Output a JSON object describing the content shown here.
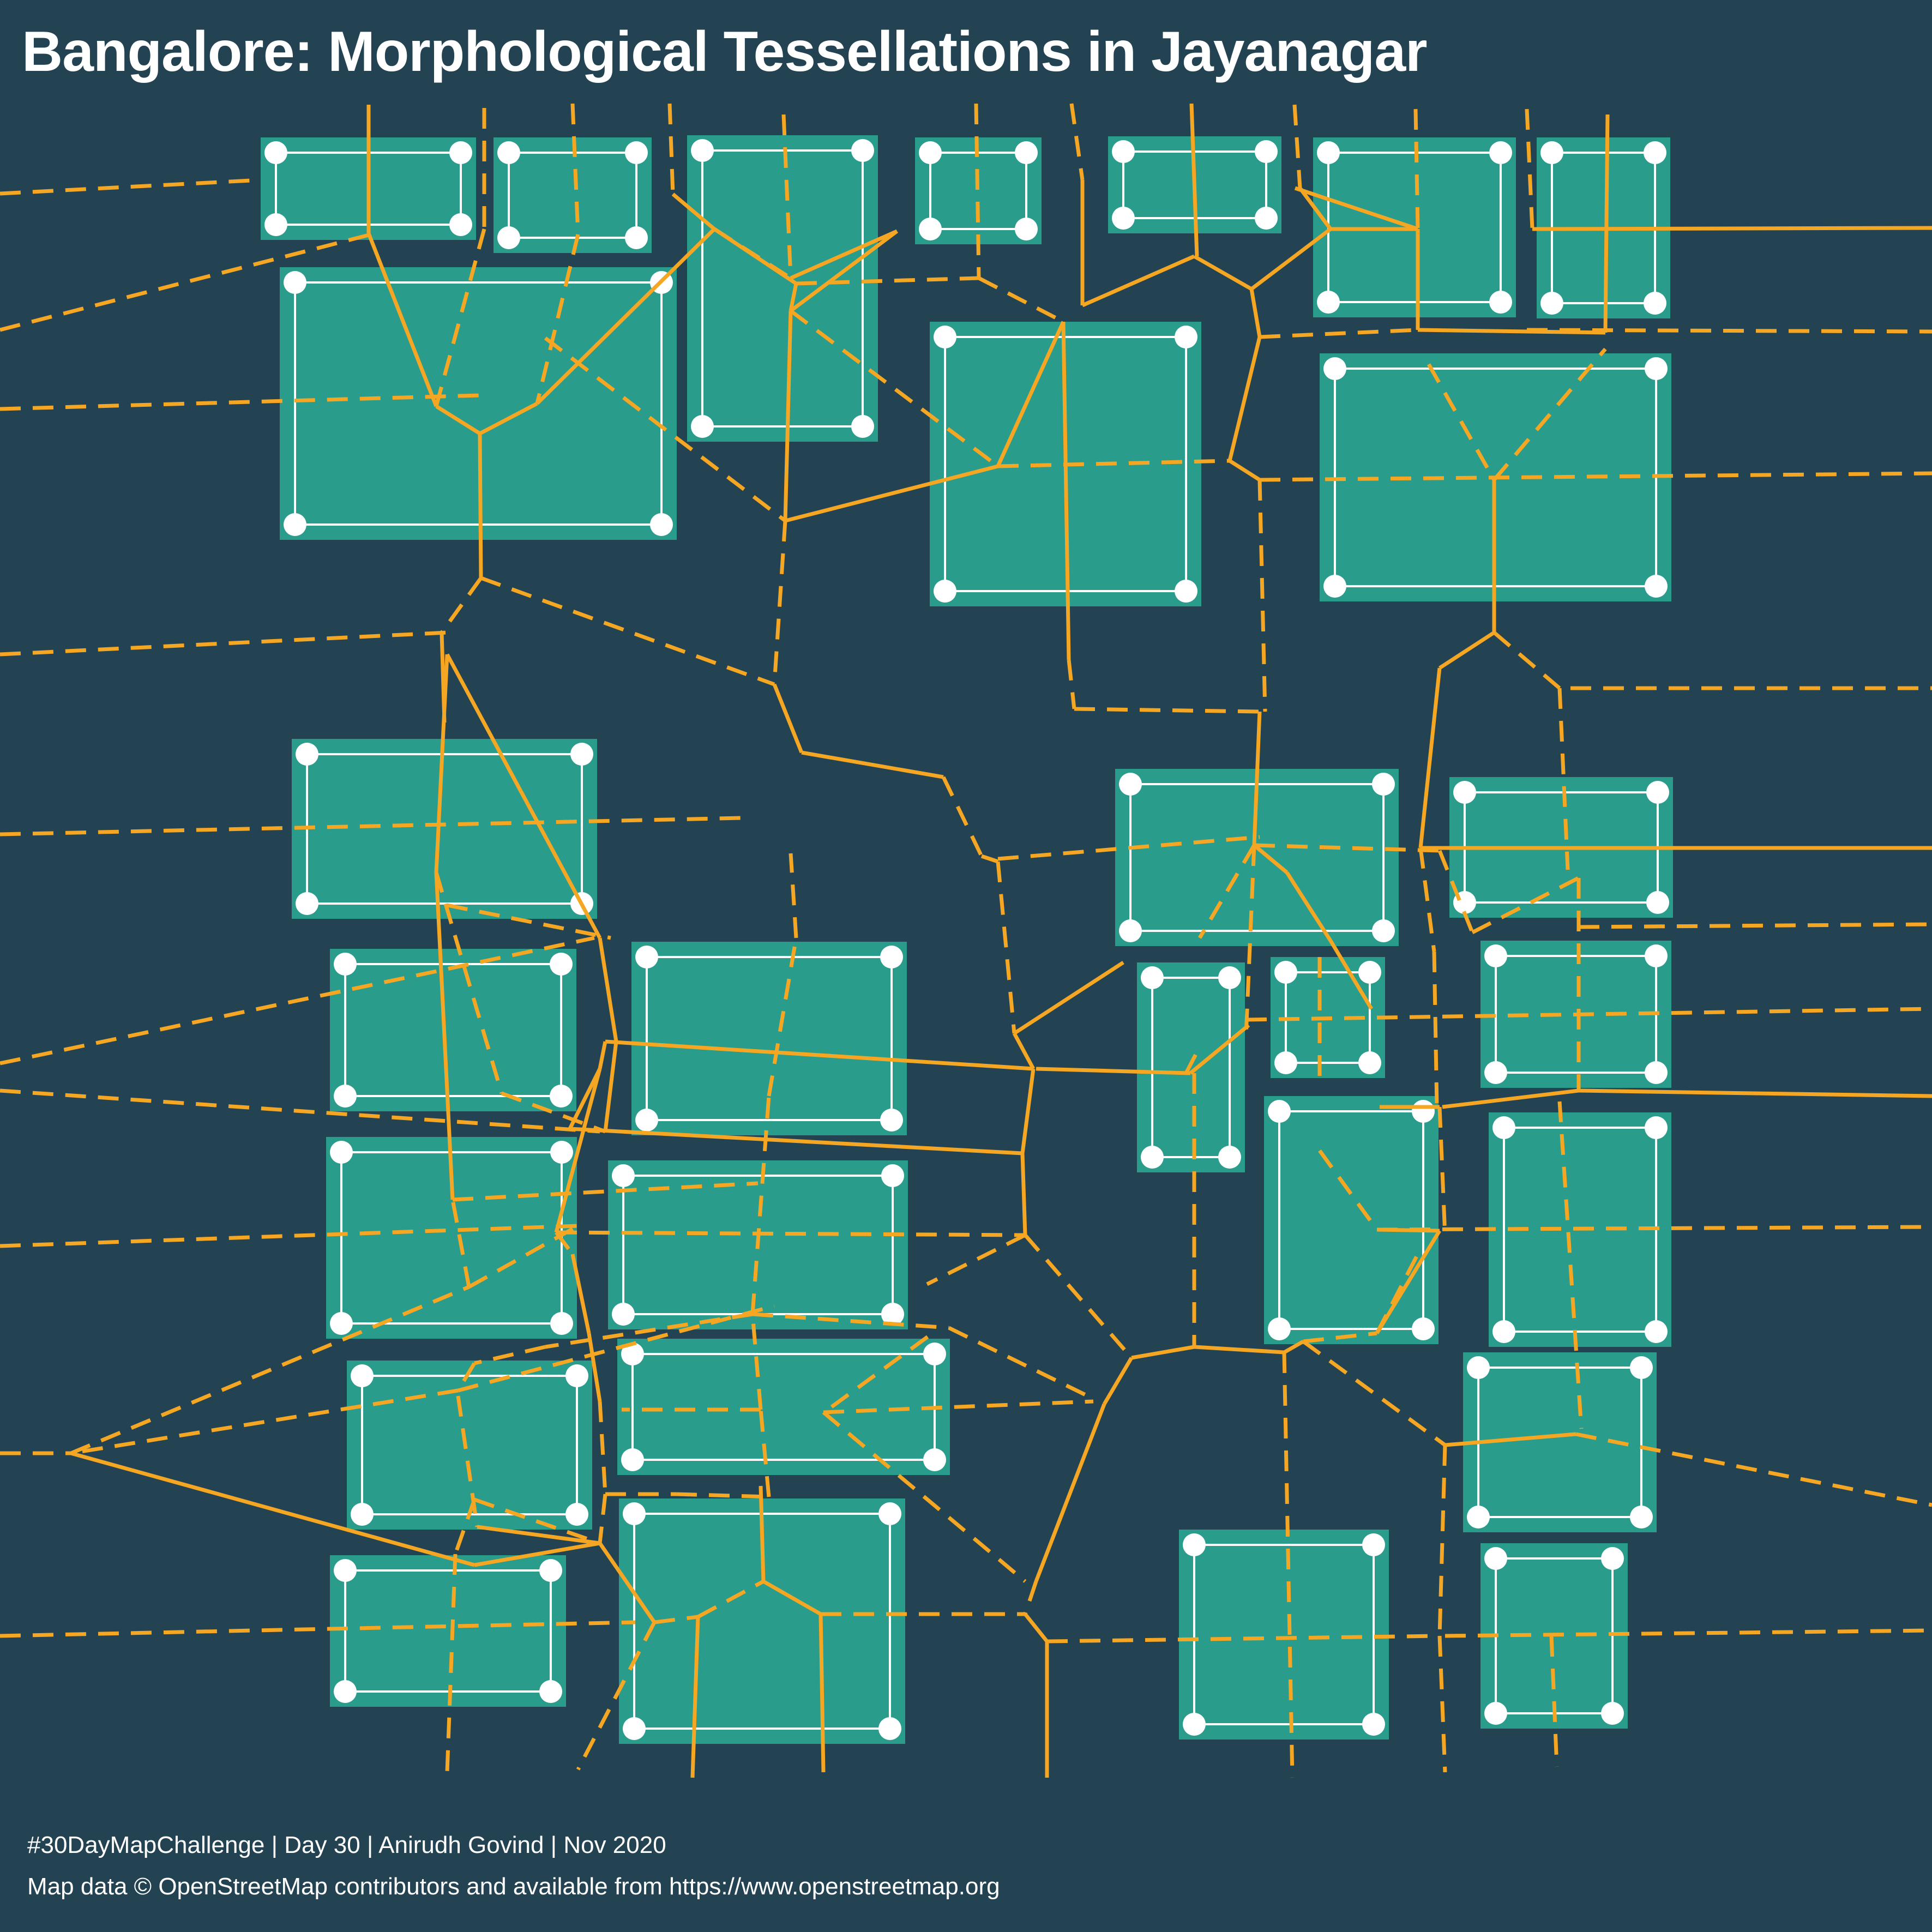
{
  "title": "Bangalore: Morphological Tessellations in Jayanagar",
  "credits": {
    "line1": "#30DayMapChallenge | Day 30 | Anirudh Govind | Nov 2020",
    "line2": "Map data © OpenStreetMap contributors and available from https://www.openstreetmap.org"
  },
  "style": {
    "background": "#244352",
    "building_fill": "#2a9c8c",
    "tessellation_line": "#f5a623",
    "building_outline": "#ffffff"
  }
}
